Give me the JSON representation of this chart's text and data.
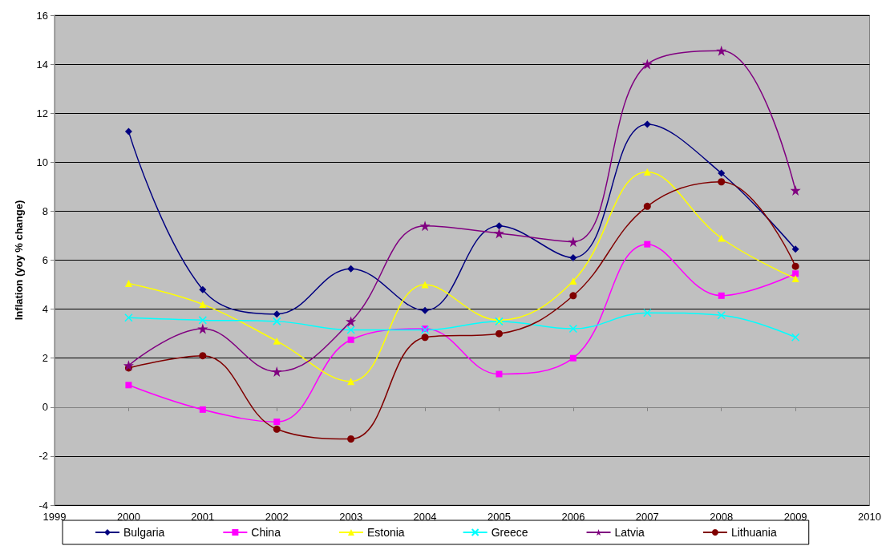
{
  "chart_data": {
    "type": "line",
    "ylabel": "Inflation (yoy % change)",
    "x": [
      2000,
      2001,
      2002,
      2003,
      2004,
      2005,
      2006,
      2007,
      2008,
      2009
    ],
    "xlim": [
      1999,
      2010
    ],
    "xticks": [
      1999,
      2000,
      2001,
      2002,
      2003,
      2004,
      2005,
      2006,
      2007,
      2008,
      2009,
      2010
    ],
    "ylim": [
      -4,
      16
    ],
    "yticks": [
      -4,
      -2,
      0,
      2,
      4,
      6,
      8,
      10,
      12,
      14,
      16
    ],
    "grid": "y",
    "legend": "bottom",
    "series": [
      {
        "name": "Bulgaria",
        "color": "#000080",
        "marker": "diamond",
        "values": [
          11.25,
          4.8,
          3.8,
          5.65,
          3.95,
          7.4,
          6.1,
          11.55,
          9.55,
          6.45
        ]
      },
      {
        "name": "China",
        "color": "#ff00ff",
        "marker": "square",
        "values": [
          0.9,
          -0.1,
          -0.6,
          2.75,
          3.2,
          1.35,
          2.0,
          6.65,
          4.55,
          5.45
        ]
      },
      {
        "name": "Estonia",
        "color": "#ffff00",
        "marker": "triangle",
        "values": [
          5.05,
          4.2,
          2.7,
          1.05,
          5.0,
          3.55,
          5.15,
          9.6,
          6.9,
          5.25
        ]
      },
      {
        "name": "Greece",
        "color": "#00ffff",
        "marker": "cross",
        "values": [
          3.65,
          3.55,
          3.5,
          3.15,
          3.15,
          3.5,
          3.2,
          3.85,
          3.75,
          2.85
        ]
      },
      {
        "name": "Latvia",
        "color": "#800080",
        "marker": "star",
        "values": [
          1.7,
          3.2,
          1.45,
          3.5,
          7.4,
          7.1,
          6.75,
          14.0,
          14.55,
          8.85
        ]
      },
      {
        "name": "Lithuania",
        "color": "#800000",
        "marker": "circle",
        "values": [
          1.6,
          2.1,
          -0.9,
          -1.3,
          2.85,
          3.0,
          4.55,
          8.2,
          9.2,
          5.75
        ]
      }
    ]
  }
}
